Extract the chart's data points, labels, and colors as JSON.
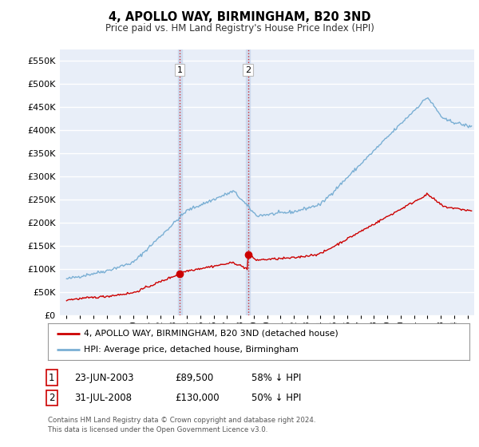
{
  "title": "4, APOLLO WAY, BIRMINGHAM, B20 3ND",
  "subtitle": "Price paid vs. HM Land Registry's House Price Index (HPI)",
  "ylim": [
    0,
    575000
  ],
  "yticks": [
    0,
    50000,
    100000,
    150000,
    200000,
    250000,
    300000,
    350000,
    400000,
    450000,
    500000,
    550000
  ],
  "xlim_start": 1994.5,
  "xlim_end": 2025.5,
  "background_color": "#ffffff",
  "plot_bg_color": "#e8eef8",
  "grid_color": "#ffffff",
  "purchase1_year": 2003.47,
  "purchase1_price": 89500,
  "purchase2_year": 2008.58,
  "purchase2_price": 130000,
  "legend_line1": "4, APOLLO WAY, BIRMINGHAM, B20 3ND (detached house)",
  "legend_line2": "HPI: Average price, detached house, Birmingham",
  "table_row1": [
    "1",
    "23-JUN-2003",
    "£89,500",
    "58% ↓ HPI"
  ],
  "table_row2": [
    "2",
    "31-JUL-2008",
    "£130,000",
    "50% ↓ HPI"
  ],
  "footer": "Contains HM Land Registry data © Crown copyright and database right 2024.\nThis data is licensed under the Open Government Licence v3.0.",
  "red_color": "#cc0000",
  "blue_color": "#7aafd4",
  "shade_color": "#ccd9ee",
  "shade_alpha": 0.85
}
